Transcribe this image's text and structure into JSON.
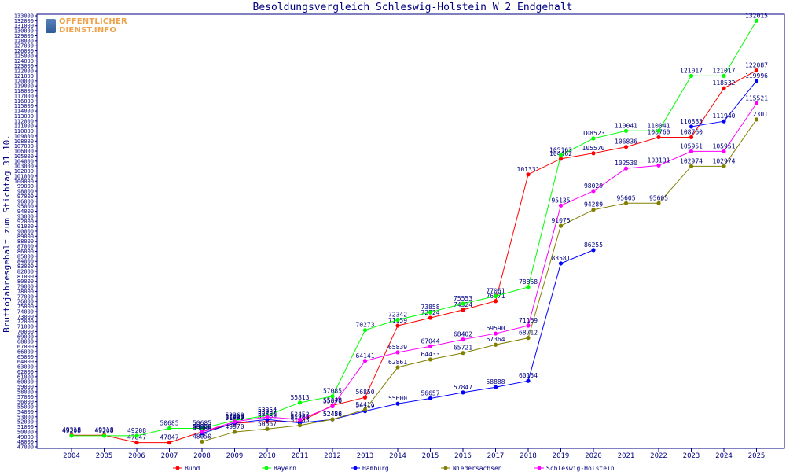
{
  "chart_data": {
    "type": "line",
    "title": "Besoldungsvergleich Schleswig-Holstein W 2 Endgehalt",
    "ylabel": "Bruttojahresgehalt zum Stichtag 31.10.",
    "xlabel": "",
    "ylim": [
      47000,
      133000
    ],
    "ytick_step": 1000,
    "grid": false,
    "legend_position": "bottom",
    "categories": [
      "2004",
      "2005",
      "2006",
      "2007",
      "2008",
      "2009",
      "2010",
      "2011",
      "2012",
      "2013",
      "2014",
      "2015",
      "2016",
      "2017",
      "2018",
      "2019",
      "2020",
      "2021",
      "2022",
      "2023",
      "2024",
      "2025"
    ],
    "series": [
      {
        "name": "Bund",
        "color": "#ff0000",
        "values": [
          49318,
          49318,
          47847,
          47847,
          50020,
          51689,
          52089,
          51983,
          55248,
          56850,
          71159,
          72724,
          74324,
          76071,
          101331,
          104462,
          105570,
          106836,
          108760,
          108760,
          118532,
          122087
        ]
      },
      {
        "name": "Bayern",
        "color": "#00ff00",
        "values": [
          49208,
          49208,
          49208,
          50685,
          50685,
          52260,
          53254,
          55813,
          57085,
          70273,
          72342,
          73858,
          75553,
          77061,
          78868,
          105163,
          108523,
          110041,
          110041,
          121017,
          121017,
          132015
        ]
      },
      {
        "name": "Hamburg",
        "color": "#0000ff",
        "values": [
          null,
          null,
          null,
          null,
          49688,
          51757,
          52460,
          51763,
          52458,
          54119,
          55600,
          56657,
          57847,
          58888,
          60154,
          83581,
          86255,
          null,
          null,
          110883,
          111940,
          119996
        ]
      },
      {
        "name": "Niedersachsen",
        "color": "#808000",
        "values": [
          null,
          null,
          null,
          null,
          48050,
          49970,
          50567,
          51283,
          52486,
          54411,
          62861,
          64433,
          65721,
          67364,
          68712,
          91075,
          94289,
          95605,
          95605,
          102974,
          102974,
          112301
        ]
      },
      {
        "name": "Schleswig-Holstein",
        "color": "#ff00ff",
        "values": [
          null,
          null,
          null,
          null,
          49969,
          52020,
          52957,
          52452,
          55070,
          64141,
          65839,
          67044,
          68402,
          69590,
          71169,
          95135,
          98029,
          102530,
          103131,
          105951,
          105951,
          115521
        ]
      }
    ]
  },
  "logo": {
    "line1": "ÖFFENTLICHER",
    "line2": "DIENST.INFO"
  }
}
